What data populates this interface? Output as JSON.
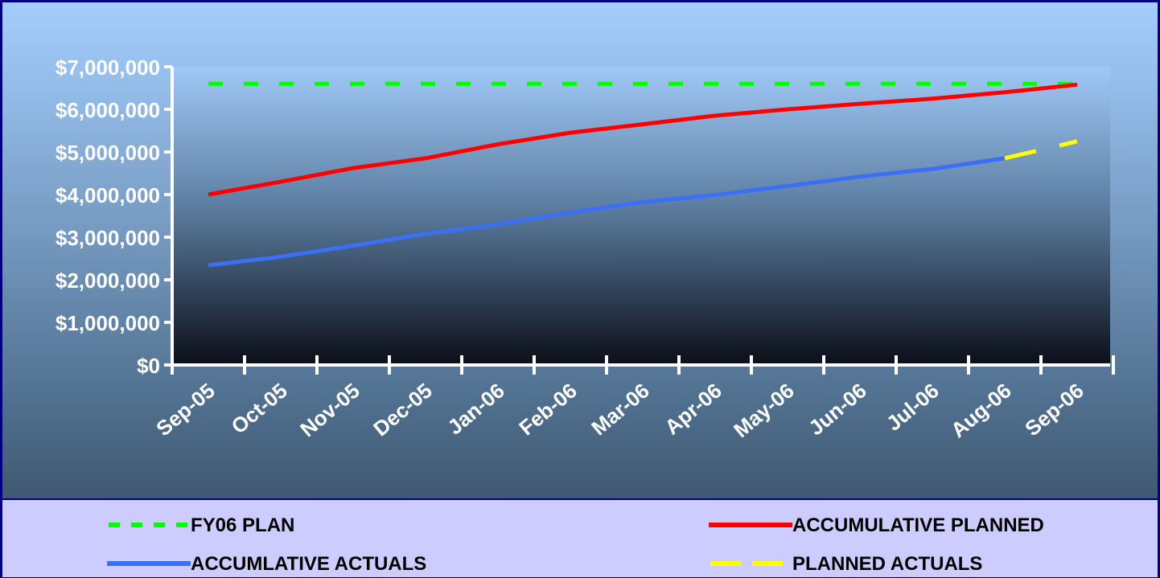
{
  "chart_data": {
    "type": "line",
    "categories": [
      "Sep-05",
      "Oct-05",
      "Nov-05",
      "Dec-05",
      "Jan-06",
      "Feb-06",
      "Mar-06",
      "Apr-06",
      "May-06",
      "Jun-06",
      "Jul-06",
      "Aug-06",
      "Sep-06"
    ],
    "y_ticks": [
      "$0",
      "$1,000,000",
      "$2,000,000",
      "$3,000,000",
      "$4,000,000",
      "$5,000,000",
      "$6,000,000",
      "$7,000,000"
    ],
    "ylim": [
      0,
      7000000
    ],
    "grid": false,
    "legend_position": "bottom",
    "series": [
      {
        "name": "FY06 PLAN",
        "color": "#00ff00",
        "style": "dashed",
        "x": [
          0,
          12
        ],
        "values": [
          6600000,
          6600000
        ]
      },
      {
        "name": "ACCUMULATIVE PLANNED",
        "color": "#ff0000",
        "style": "solid",
        "x": [
          0,
          1,
          2,
          3,
          4,
          5,
          6,
          7,
          8,
          9,
          10,
          11,
          12
        ],
        "values": [
          4000000,
          4300000,
          4620000,
          4850000,
          5180000,
          5450000,
          5650000,
          5850000,
          6000000,
          6130000,
          6250000,
          6400000,
          6580000
        ]
      },
      {
        "name": "ACCUMLATIVE ACTUALS",
        "color": "#3b6ff5",
        "style": "solid",
        "x": [
          0,
          1,
          2,
          3,
          4,
          5,
          6,
          7,
          8,
          9,
          10,
          11
        ],
        "values": [
          2340000,
          2540000,
          2800000,
          3080000,
          3300000,
          3580000,
          3820000,
          3990000,
          4200000,
          4420000,
          4600000,
          4850000
        ]
      },
      {
        "name": "PLANNED ACTUALS",
        "color": "#ffff00",
        "style": "dashed",
        "x": [
          11,
          12
        ],
        "values": [
          4850000,
          5250000
        ]
      }
    ]
  }
}
